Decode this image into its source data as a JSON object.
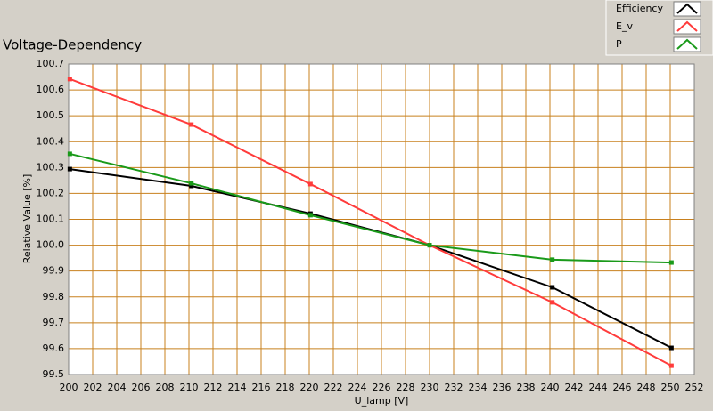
{
  "chart_data": {
    "type": "line",
    "title": "Voltage-Dependency",
    "x_label": "U_lamp [V]",
    "y_label": "Relative Value [%]",
    "x": [
      200.1,
      210.2,
      220.1,
      230.0,
      240.2,
      250.1
    ],
    "series": [
      {
        "name": "Efficiency",
        "color": "#000000",
        "values": [
          100.294,
          100.229,
          100.122,
          100.0,
          99.837,
          99.603
        ]
      },
      {
        "name": "E_v",
        "color": "#ff3b3b",
        "values": [
          100.642,
          100.466,
          100.236,
          100.0,
          99.779,
          99.534
        ]
      },
      {
        "name": "P",
        "color": "#1a9a1a",
        "values": [
          100.353,
          100.239,
          100.116,
          100.0,
          99.944,
          99.933
        ]
      }
    ],
    "xlim": [
      200,
      252
    ],
    "xticks": [
      200,
      202,
      204,
      206,
      208,
      210,
      212,
      214,
      216,
      218,
      220,
      222,
      224,
      226,
      228,
      230,
      232,
      234,
      236,
      238,
      240,
      242,
      244,
      246,
      248,
      250,
      252
    ],
    "ylim": [
      99.5,
      100.7
    ],
    "yticks": [
      99.5,
      99.6,
      99.7,
      99.8,
      99.9,
      {
        "value": 100,
        "label": "100.0"
      },
      100.1,
      100.2,
      100.3,
      100.4,
      100.5,
      100.6,
      100.7
    ],
    "grid": true,
    "grid_color": "#c8801e",
    "legend": "top-right"
  }
}
